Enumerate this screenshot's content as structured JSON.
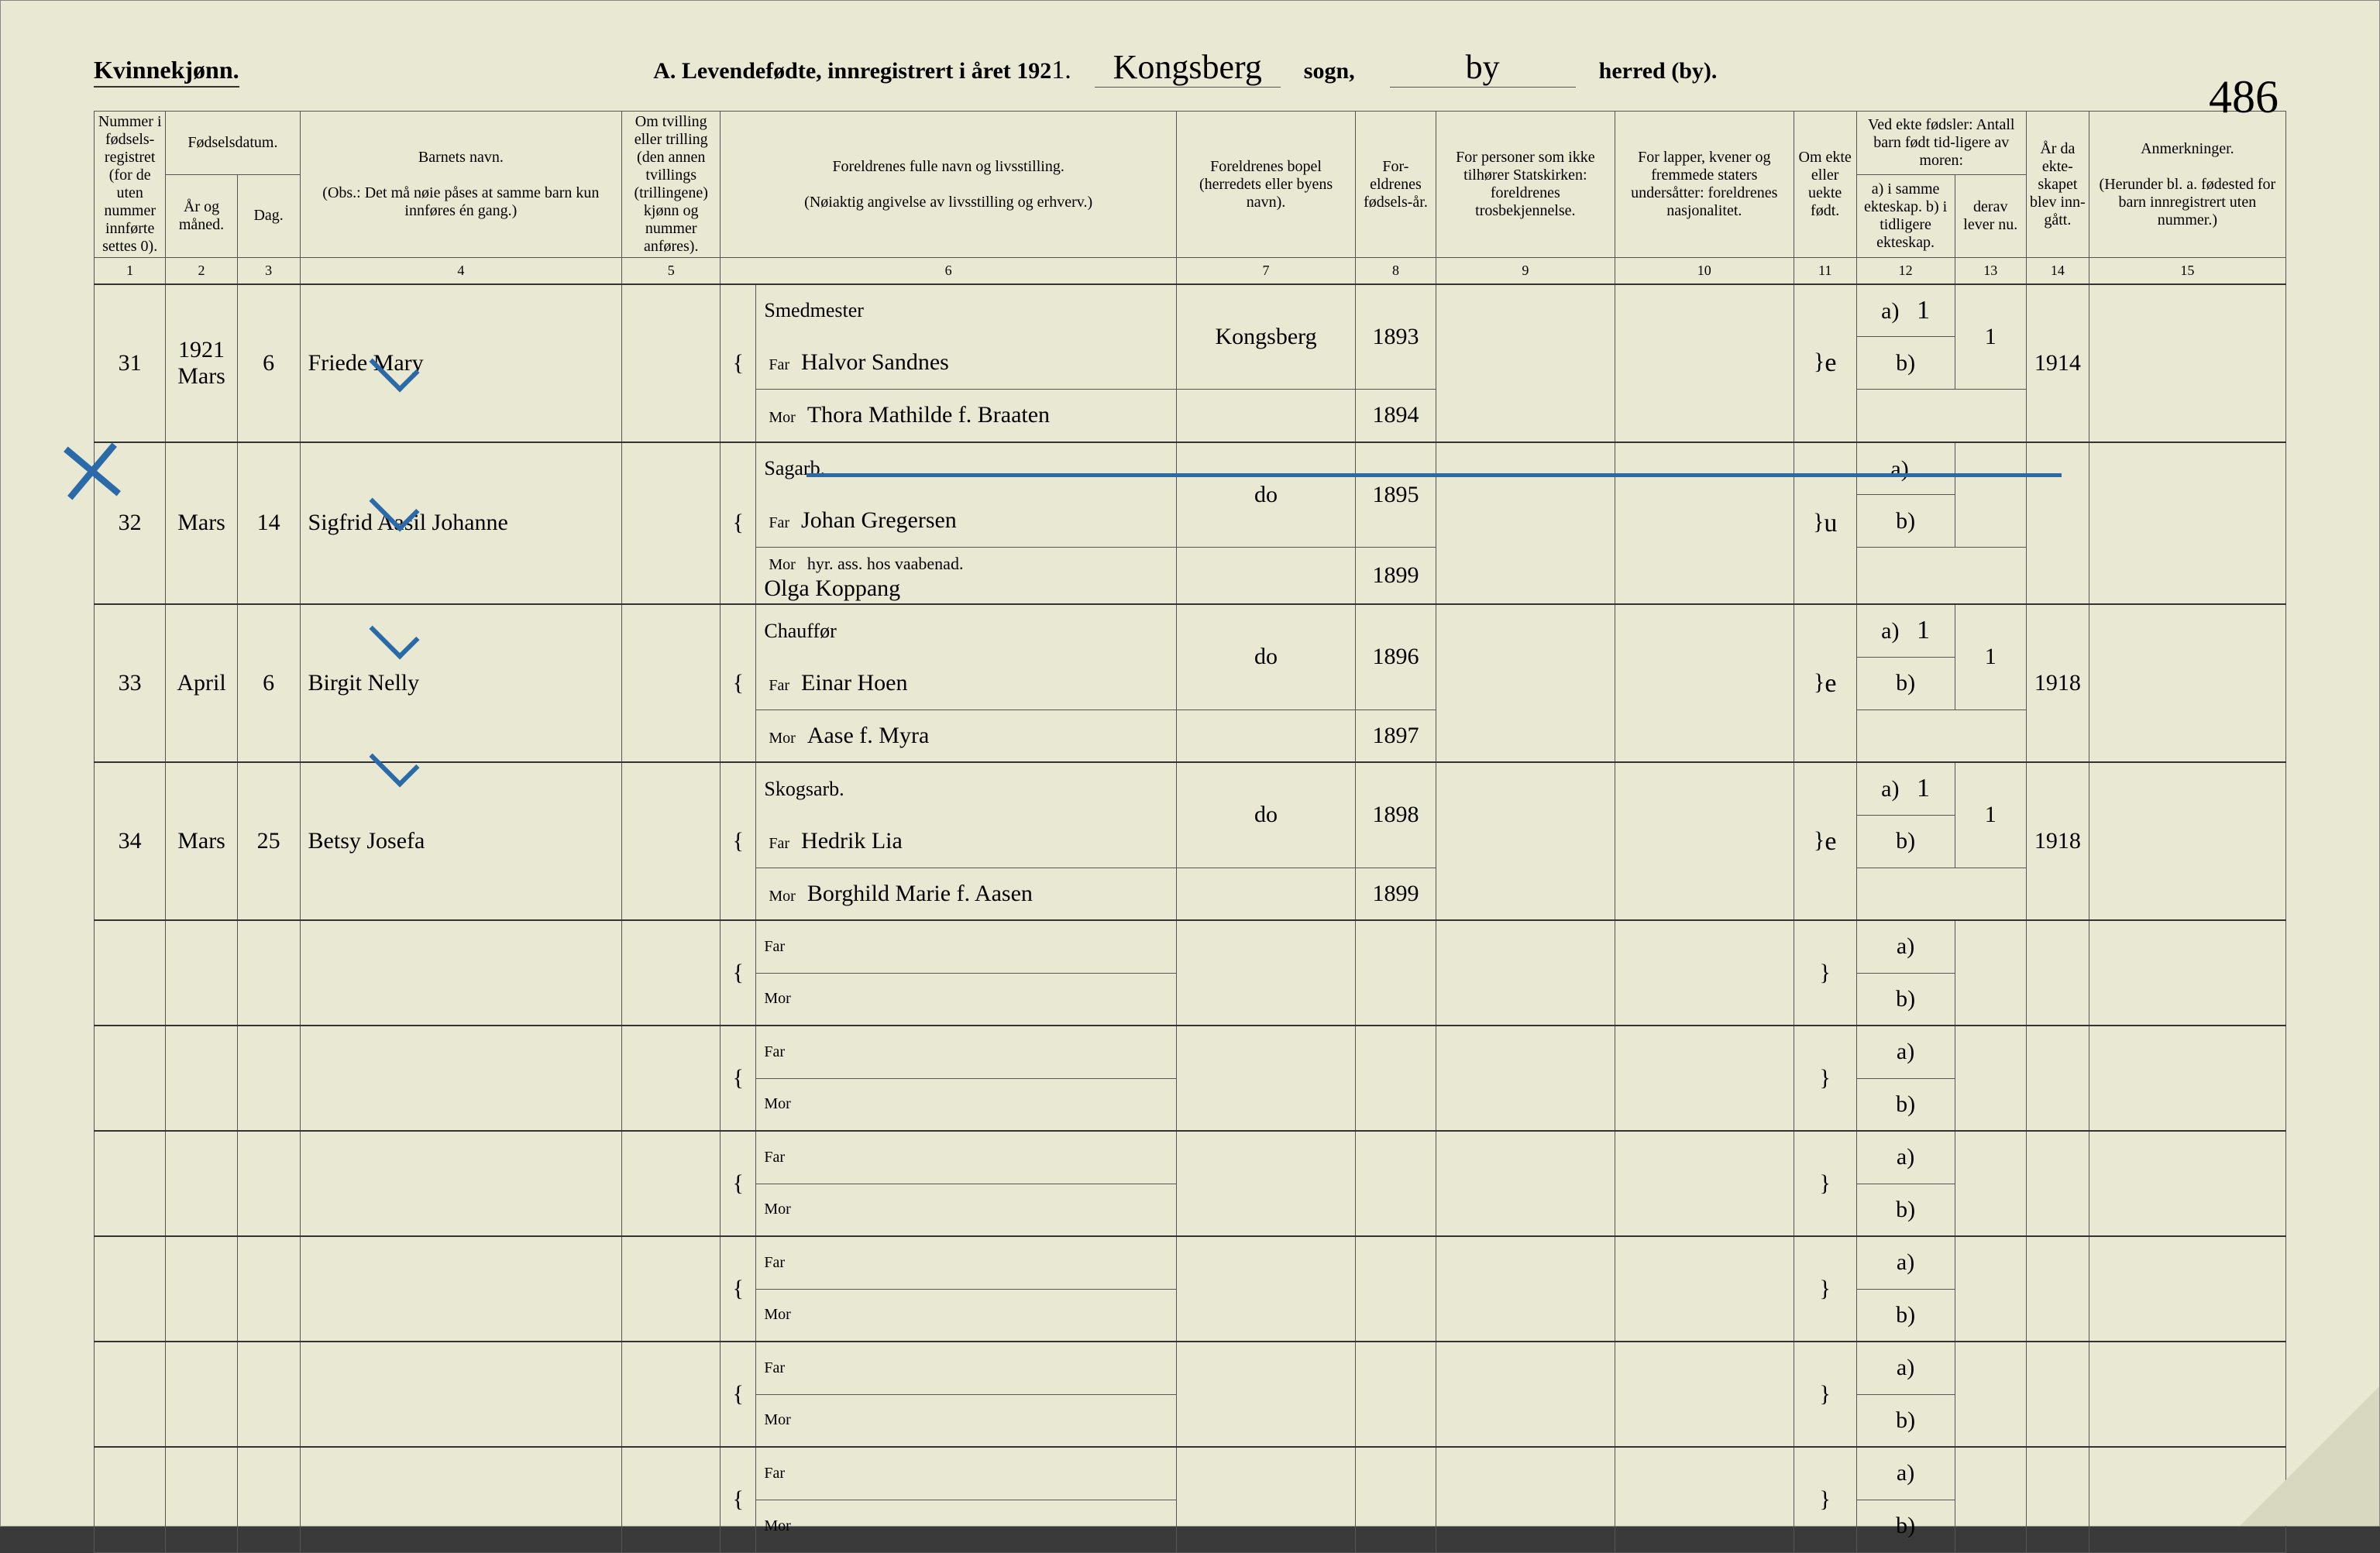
{
  "page": {
    "gender_label": "Kvinnekjønn.",
    "title_prefix": "A.  Levendefødte, innregistrert i året 192",
    "year_suffix": "1.",
    "sogn_label": "sogn,",
    "herred_label": "herred (by).",
    "sogn_hand": "Kongsberg",
    "herred_hand": "by",
    "page_number": "486"
  },
  "headers": {
    "h1": "Nummer i fødsels-registret (for de uten nummer innførte settes 0).",
    "h2_top": "Fødselsdatum.",
    "h2": "År og måned.",
    "h3": "Dag.",
    "h4_top": "Barnets navn.",
    "h4_sub": "(Obs.: Det må nøie påses at samme barn kun innføres én gang.)",
    "h5": "Om tvilling eller trilling (den annen tvillings (trillingene) kjønn og nummer anføres).",
    "h6_top": "Foreldrenes fulle navn og livsstilling.",
    "h6_sub": "(Nøiaktig angivelse av livsstilling og erhverv.)",
    "h7": "Foreldrenes bopel (herredets eller byens navn).",
    "h8": "For-eldrenes fødsels-år.",
    "h9": "For personer som ikke tilhører Statskirken: foreldrenes trosbekjennelse.",
    "h10": "For lapper, kvener og fremmede staters undersåtter: foreldrenes nasjonalitet.",
    "h11": "Om ekte eller uekte født.",
    "h12_13_top": "Ved ekte fødsler: Antall barn født tid-ligere av moren:",
    "h12": "a) i samme ekteskap. b) i tidligere ekteskap.",
    "h13": "derav lever nu.",
    "h14": "År da ekte-skapet blev inn-gått.",
    "h15_top": "Anmerkninger.",
    "h15_sub": "(Herunder bl. a. fødested for barn innregistrert uten nummer.)",
    "far": "Far",
    "mor": "Mor"
  },
  "colnums": [
    "1",
    "2",
    "3",
    "4",
    "5",
    "6",
    "7",
    "8",
    "9",
    "10",
    "11",
    "12",
    "13",
    "14",
    "15"
  ],
  "rows": [
    {
      "num": "31",
      "year": "1921",
      "month": "Mars",
      "day": "6",
      "child": "Friede Mary",
      "far_occ": "Smedmester",
      "far": "Halvor Sandnes",
      "mor": "Thora Mathilde f. Braaten",
      "bopel": "Kongsberg",
      "far_yr": "1893",
      "mor_yr": "1894",
      "ekte": "e",
      "c12a": "1",
      "c13": "1",
      "c14": "1914"
    },
    {
      "num": "32",
      "month": "Mars",
      "day": "14",
      "child": "Sigfrid Aasil Johanne",
      "far_occ": "Sagarb.",
      "far": "Johan Gregersen",
      "mor_note": "hyr. ass. hos vaabenad.",
      "mor": "Olga Koppang",
      "bopel": "do",
      "far_yr": "1895",
      "mor_yr": "1899",
      "ekte": "u",
      "c12a": "",
      "c13": "",
      "c14": ""
    },
    {
      "num": "33",
      "month": "April",
      "day": "6",
      "child": "Birgit Nelly",
      "far_occ": "Chauffør",
      "far": "Einar Hoen",
      "mor": "Aase f. Myra",
      "bopel": "do",
      "far_yr": "1896",
      "mor_yr": "1897",
      "ekte": "e",
      "c12a": "1",
      "c13": "1",
      "c14": "1918"
    },
    {
      "num": "34",
      "month": "Mars",
      "day": "25",
      "child": "Betsy Josefa",
      "far_occ": "Skogsarb.",
      "far": "Hedrik Lia",
      "mor": "Borghild Marie f. Aasen",
      "bopel": "do",
      "far_yr": "1898",
      "mor_yr": "1899",
      "ekte": "e",
      "c12a": "1",
      "c13": "1",
      "c14": "1918"
    }
  ],
  "empty_row_count": 6,
  "ab": {
    "a": "a)",
    "b": "b)"
  },
  "styling": {
    "page_bg": "#e9e9d3",
    "line_color": "#555555",
    "ink_color": "#222222",
    "blue": "#2a6aa8",
    "header_fontsize": 20,
    "hand_fontsize": 30,
    "colnum_fontsize": 18
  }
}
